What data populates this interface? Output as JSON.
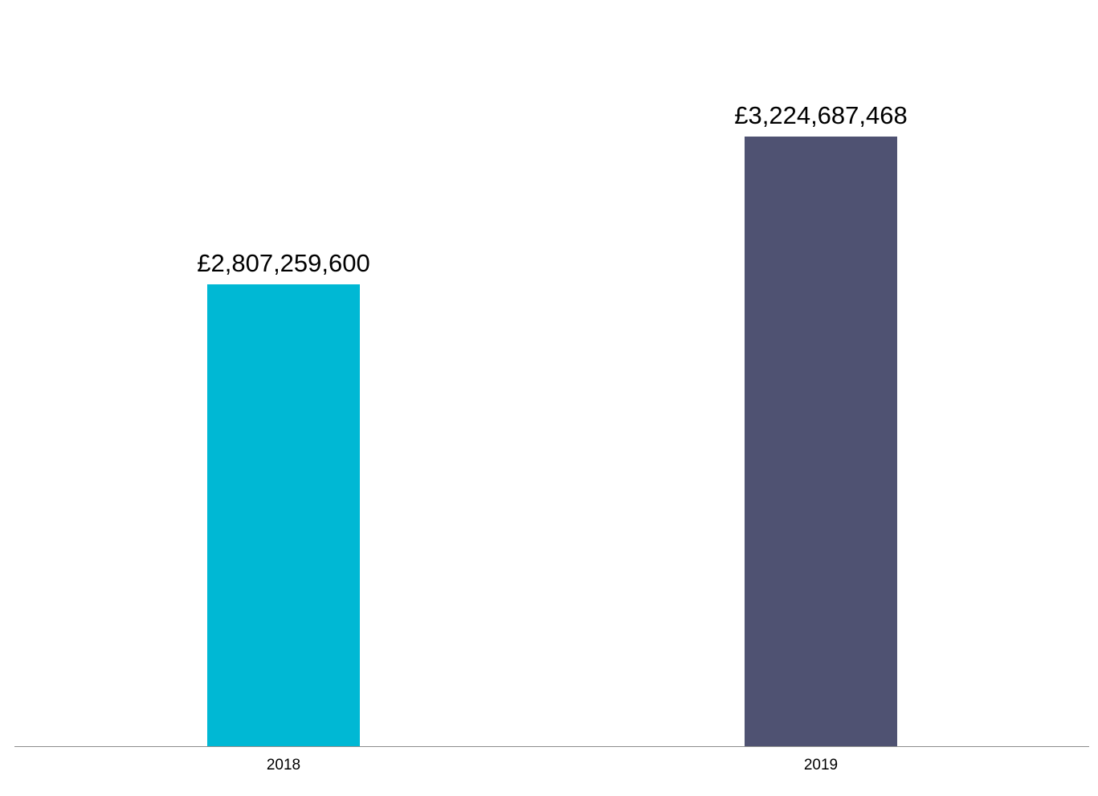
{
  "chart_data": {
    "type": "bar",
    "title": "",
    "xlabel": "",
    "ylabel": "",
    "categories": [
      "2018",
      "2019"
    ],
    "values": [
      2807259600,
      3224687468
    ],
    "value_labels": [
      "£2,807,259,600",
      "£3,224,687,468"
    ],
    "colors": [
      "#00b8d4",
      "#4f5272"
    ],
    "grid": false,
    "legend": null,
    "y_axis_visible": false,
    "ylim": [
      1502800000,
      3610000000
    ]
  }
}
